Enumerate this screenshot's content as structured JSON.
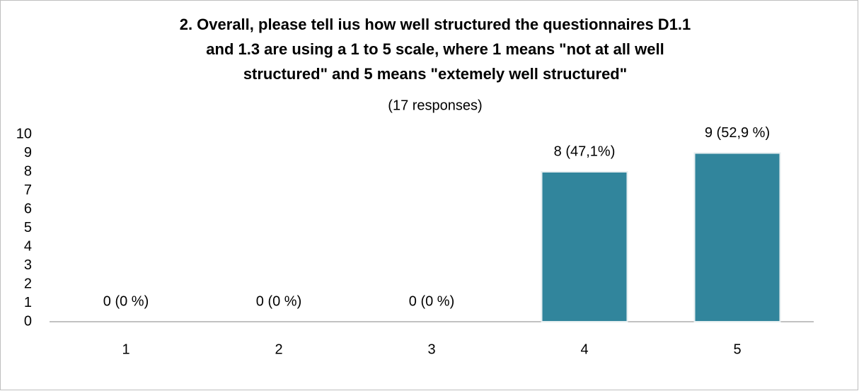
{
  "chart_data": {
    "type": "bar",
    "title": [
      "2. Overall, please tell ius how well structured the questionnaires D1.1",
      "and 1.3 are using a 1 to 5 scale, where 1 means \"not at all well",
      "structured\" and 5 means \"extemely well structured\""
    ],
    "subtitle": "(17 responses)",
    "categories": [
      "1",
      "2",
      "3",
      "4",
      "5"
    ],
    "values": [
      0,
      0,
      0,
      8,
      9
    ],
    "value_labels": [
      "0 (0 %)",
      "0 (0 %)",
      "0 (0 %)",
      "8 (47,1%)",
      "9 (52,9 %)"
    ],
    "color": "#31859c",
    "ylim": [
      0,
      10
    ],
    "yticks": [
      0,
      1,
      2,
      3,
      4,
      5,
      6,
      7,
      8,
      9,
      10
    ],
    "grid": false
  }
}
